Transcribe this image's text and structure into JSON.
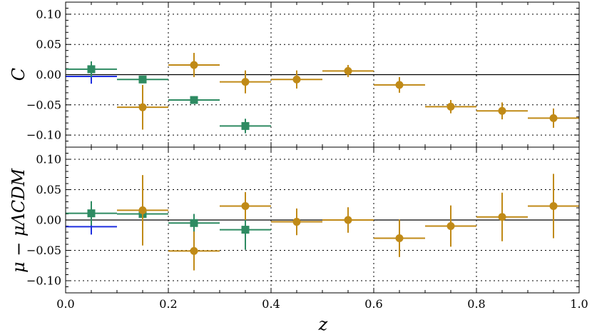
{
  "chart_data": {
    "type": "scatter",
    "colors": {
      "blue": "#1f2fe0",
      "green": "#2e8b62",
      "gold": "#c08a17"
    },
    "x": {
      "label": "z",
      "lim": [
        0.0,
        1.0
      ],
      "ticks": [
        "0.0",
        "0.2",
        "0.4",
        "0.6",
        "0.8",
        "1.0"
      ]
    },
    "y_ticks": [
      "−0.10",
      "−0.05",
      "0.00",
      "0.05",
      "0.10"
    ],
    "grid": true,
    "panels": [
      {
        "key": "top",
        "ylabel": "C",
        "ylim": [
          -0.12,
          0.12
        ],
        "series": [
          {
            "color_key": "blue",
            "marker": "none",
            "points": [
              {
                "x": 0.05,
                "xerr": 0.05,
                "y": -0.003,
                "yerr": 0.012
              }
            ]
          },
          {
            "color_key": "green",
            "marker": "square",
            "points": [
              {
                "x": 0.05,
                "xerr": 0.05,
                "y": 0.009,
                "yerr": 0.013
              },
              {
                "x": 0.15,
                "xerr": 0.05,
                "y": -0.008,
                "yerr": 0.006
              },
              {
                "x": 0.25,
                "xerr": 0.05,
                "y": -0.042,
                "yerr": 0.005
              },
              {
                "x": 0.35,
                "xerr": 0.05,
                "y": -0.085,
                "yerr": 0.012
              }
            ]
          },
          {
            "color_key": "gold",
            "marker": "circle",
            "points": [
              {
                "x": 0.15,
                "xerr": 0.05,
                "y": -0.054,
                "yerr": 0.037
              },
              {
                "x": 0.25,
                "xerr": 0.05,
                "y": 0.016,
                "yerr": 0.02
              },
              {
                "x": 0.35,
                "xerr": 0.05,
                "y": -0.012,
                "yerr": 0.019
              },
              {
                "x": 0.45,
                "xerr": 0.05,
                "y": -0.008,
                "yerr": 0.015
              },
              {
                "x": 0.55,
                "xerr": 0.05,
                "y": 0.006,
                "yerr": 0.01
              },
              {
                "x": 0.65,
                "xerr": 0.05,
                "y": -0.017,
                "yerr": 0.013
              },
              {
                "x": 0.75,
                "xerr": 0.05,
                "y": -0.053,
                "yerr": 0.011
              },
              {
                "x": 0.85,
                "xerr": 0.05,
                "y": -0.06,
                "yerr": 0.014
              },
              {
                "x": 0.95,
                "xerr": 0.05,
                "y": -0.072,
                "yerr": 0.016
              }
            ]
          }
        ]
      },
      {
        "key": "bottom",
        "ylabel": "μ − μΛCDM",
        "ylim": [
          -0.12,
          0.12
        ],
        "series": [
          {
            "color_key": "blue",
            "marker": "none",
            "points": [
              {
                "x": 0.05,
                "xerr": 0.05,
                "y": -0.011,
                "yerr": 0.013
              }
            ]
          },
          {
            "color_key": "green",
            "marker": "square",
            "points": [
              {
                "x": 0.05,
                "xerr": 0.05,
                "y": 0.011,
                "yerr": 0.02
              },
              {
                "x": 0.15,
                "xerr": 0.05,
                "y": 0.01,
                "yerr": 0.005
              },
              {
                "x": 0.25,
                "xerr": 0.05,
                "y": -0.005,
                "yerr": 0.015
              },
              {
                "x": 0.35,
                "xerr": 0.05,
                "y": -0.016,
                "yerr": 0.033
              }
            ]
          },
          {
            "color_key": "gold",
            "marker": "circle",
            "points": [
              {
                "x": 0.15,
                "xerr": 0.05,
                "y": 0.016,
                "yerr": 0.058
              },
              {
                "x": 0.25,
                "xerr": 0.05,
                "y": -0.051,
                "yerr": 0.032
              },
              {
                "x": 0.35,
                "xerr": 0.05,
                "y": 0.023,
                "yerr": 0.023
              },
              {
                "x": 0.45,
                "xerr": 0.05,
                "y": -0.003,
                "yerr": 0.022
              },
              {
                "x": 0.55,
                "xerr": 0.05,
                "y": 0.0,
                "yerr": 0.021
              },
              {
                "x": 0.65,
                "xerr": 0.05,
                "y": -0.03,
                "yerr": 0.031
              },
              {
                "x": 0.75,
                "xerr": 0.05,
                "y": -0.01,
                "yerr": 0.034
              },
              {
                "x": 0.85,
                "xerr": 0.05,
                "y": 0.005,
                "yerr": 0.04
              },
              {
                "x": 0.95,
                "xerr": 0.05,
                "y": 0.023,
                "yerr": 0.053
              }
            ]
          }
        ]
      }
    ]
  }
}
